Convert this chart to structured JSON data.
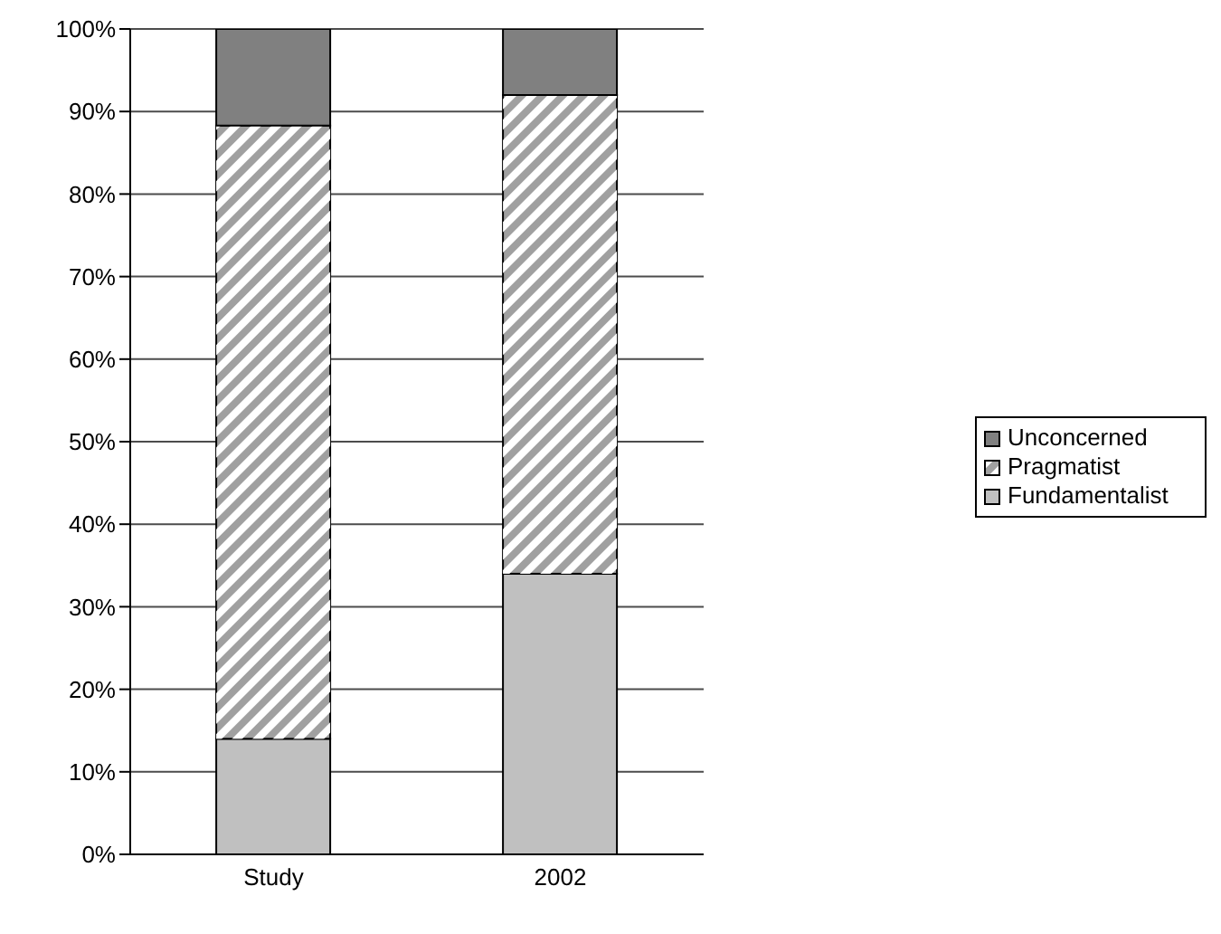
{
  "chart_data": {
    "type": "bar",
    "stacked": true,
    "categories": [
      "Study",
      "2002"
    ],
    "series": [
      {
        "name": "Fundamentalist",
        "color": "#c0c0c0",
        "values": [
          14,
          34
        ]
      },
      {
        "name": "Pragmatist",
        "color": "#a0a0a0",
        "values": [
          74.3,
          58
        ]
      },
      {
        "name": "Unconcerned",
        "color": "#808080",
        "values": [
          11.7,
          8
        ]
      }
    ],
    "ylim": [
      0,
      100
    ],
    "yticks": [
      {
        "value": 0,
        "label": "0%"
      },
      {
        "value": 10,
        "label": "10%"
      },
      {
        "value": 20,
        "label": "20%"
      },
      {
        "value": 30,
        "label": "30%"
      },
      {
        "value": 40,
        "label": "40%"
      },
      {
        "value": 50,
        "label": "50%"
      },
      {
        "value": 60,
        "label": "60%"
      },
      {
        "value": 70,
        "label": "70%"
      },
      {
        "value": 80,
        "label": "80%"
      },
      {
        "value": 90,
        "label": "90%"
      },
      {
        "value": 100,
        "label": "100%"
      }
    ],
    "grid": "y",
    "legend": "right"
  }
}
